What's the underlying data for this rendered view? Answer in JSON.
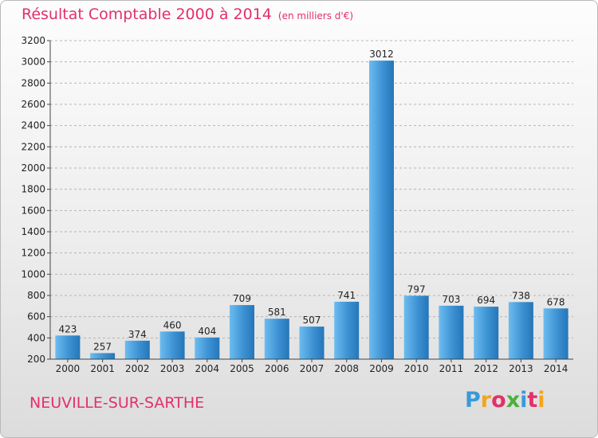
{
  "header": {
    "title": "Résultat Comptable 2000 à 2014",
    "subtitle": "(en milliers d'€)"
  },
  "footer": {
    "commune": "NEUVILLE-SUR-SARTHE",
    "logo_letters": [
      "P",
      "r",
      "o",
      "x",
      "i",
      "t",
      "i"
    ],
    "logo_colors": [
      "#3a9ad9",
      "#f3a51d",
      "#e3306a",
      "#4bb03a",
      "#3a9ad9",
      "#e3306a",
      "#f3a51d"
    ]
  },
  "chart_data": {
    "type": "bar",
    "title": "Résultat Comptable 2000 à 2014",
    "subtitle": "(en milliers d'€)",
    "xlabel": "",
    "ylabel": "",
    "categories": [
      "2000",
      "2001",
      "2002",
      "2003",
      "2004",
      "2005",
      "2006",
      "2007",
      "2008",
      "2009",
      "2010",
      "2011",
      "2012",
      "2013",
      "2014"
    ],
    "values": [
      423,
      257,
      374,
      460,
      404,
      709,
      581,
      507,
      741,
      3012,
      797,
      703,
      694,
      738,
      678
    ],
    "ylim": [
      200,
      3200
    ],
    "yticks": [
      200,
      400,
      600,
      800,
      1000,
      1200,
      1400,
      1600,
      1800,
      2000,
      2200,
      2400,
      2600,
      2800,
      3000,
      3200
    ],
    "grid": "horizontal-dashed",
    "legend": "none",
    "colors": {
      "bar_light": "#5db0ea",
      "bar_dark": "#2576b8",
      "axis": "#444444",
      "grid": "#b5b5b5",
      "text": "#222222",
      "accent": "#e3306a"
    }
  }
}
